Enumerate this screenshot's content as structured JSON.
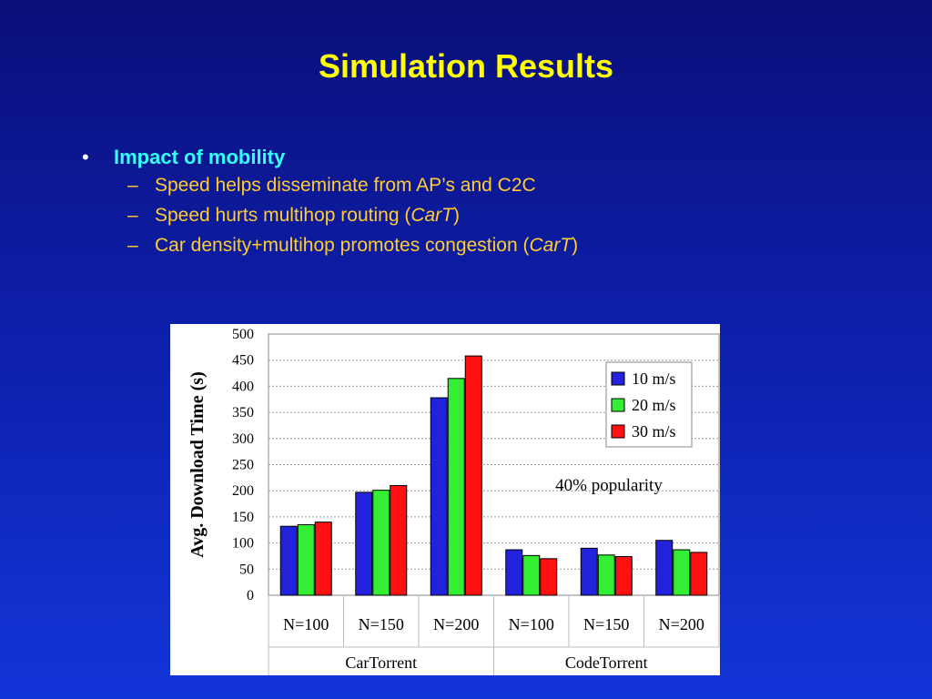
{
  "slide": {
    "title": "Simulation Results",
    "bullet": "Impact of mobility",
    "sub_items": [
      {
        "text": "Speed helps disseminate from AP’s and C2C",
        "italic": "",
        "after": ""
      },
      {
        "text": "Speed hurts multihop routing (",
        "italic": "CarT",
        "after": ")"
      },
      {
        "text": "Car density+multihop promotes congestion (",
        "italic": "CarT",
        "after": ")"
      }
    ]
  },
  "chart_data": {
    "type": "bar",
    "ylabel": "Avg. Download Time  (s)",
    "ylim": [
      0,
      500
    ],
    "yticks": [
      0,
      50,
      100,
      150,
      200,
      250,
      300,
      350,
      400,
      450,
      500
    ],
    "categories": [
      "N=100",
      "N=150",
      "N=200",
      "N=100",
      "N=150",
      "N=200"
    ],
    "groups": [
      {
        "label": "CarTorrent",
        "count": 3
      },
      {
        "label": "CodeTorrent",
        "count": 3
      }
    ],
    "series": [
      {
        "name": "10 m/s",
        "color": "#2222dd",
        "values": [
          132,
          197,
          378,
          87,
          90,
          105
        ]
      },
      {
        "name": "20 m/s",
        "color": "#33ee33",
        "values": [
          135,
          201,
          415,
          76,
          77,
          87
        ]
      },
      {
        "name": "30 m/s",
        "color": "#ff1111",
        "values": [
          140,
          210,
          458,
          70,
          74,
          82
        ]
      }
    ],
    "annotation": "40% popularity",
    "legend_position": "top-right",
    "grid": true
  }
}
